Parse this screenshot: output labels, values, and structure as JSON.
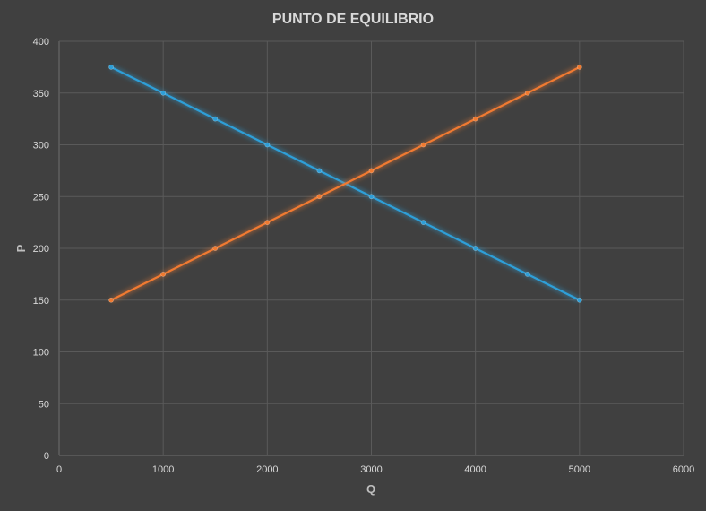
{
  "chart_data": {
    "type": "scatter",
    "title": "PUNTO DE EQUILIBRIO",
    "xlabel": "Q",
    "ylabel": "P",
    "xlim": [
      0,
      6000
    ],
    "ylim": [
      0,
      400
    ],
    "x_ticks": [
      "0",
      "1000",
      "2000",
      "3000",
      "4000",
      "5000",
      "6000"
    ],
    "y_ticks": [
      "0",
      "50",
      "100",
      "150",
      "200",
      "250",
      "300",
      "350",
      "400"
    ],
    "grid": true,
    "legend": "none",
    "series": [
      {
        "color": "#2e9fd8",
        "x": [
          500,
          1000,
          1500,
          2000,
          2500,
          3000,
          3500,
          4000,
          4500,
          5000
        ],
        "y": [
          375,
          350,
          325,
          300,
          275,
          250,
          225,
          200,
          175,
          150
        ]
      },
      {
        "color": "#f07a30",
        "x": [
          500,
          1000,
          1500,
          2000,
          2500,
          3000,
          3500,
          4000,
          4500,
          5000
        ],
        "y": [
          150,
          175,
          200,
          225,
          250,
          275,
          300,
          325,
          350,
          375
        ]
      }
    ]
  }
}
